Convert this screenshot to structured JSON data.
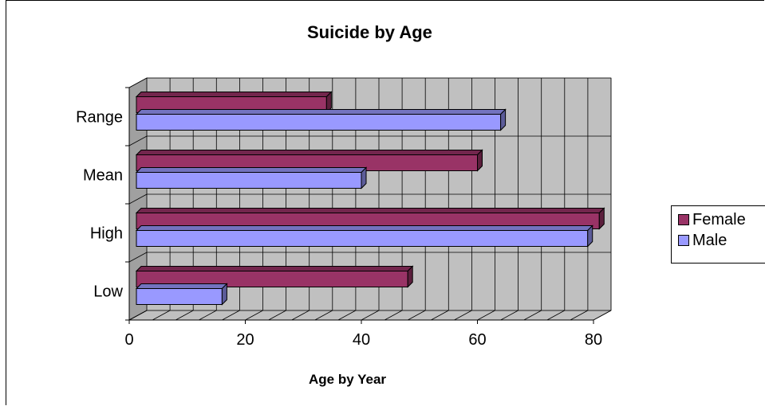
{
  "chart_data": {
    "type": "bar",
    "orientation": "horizontal",
    "title": "Suicide by Age",
    "xlabel": "Age by Year",
    "ylabel": "",
    "categories": [
      "Low",
      "High",
      "Mean",
      "Range"
    ],
    "series": [
      {
        "name": "Female",
        "values": [
          48,
          81,
          60,
          34
        ],
        "color": "#993366"
      },
      {
        "name": "Male",
        "values": [
          16,
          79,
          40,
          64
        ],
        "color": "#9999ff"
      }
    ],
    "xlim": [
      0,
      80
    ],
    "x_ticks": [
      "0",
      "20",
      "40",
      "60",
      "80"
    ],
    "grid": true,
    "legend_position": "right"
  },
  "legend": {
    "items": [
      {
        "label": "Female",
        "color": "#993366"
      },
      {
        "label": "Male",
        "color": "#9999ff"
      }
    ]
  }
}
